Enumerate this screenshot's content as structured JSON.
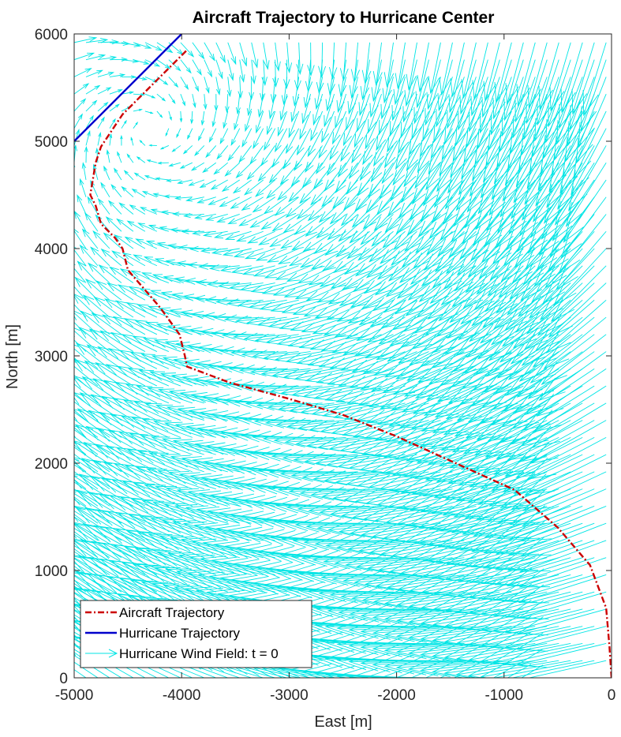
{
  "chart_data": {
    "type": "line",
    "title": "Aircraft Trajectory to Hurricane Center",
    "xlabel": "East [m]",
    "ylabel": "North [m]",
    "xlim": [
      -5000,
      0
    ],
    "ylim": [
      0,
      6000
    ],
    "x_ticks": [
      "-5000",
      "-4000",
      "-3000",
      "-2000",
      "-1000",
      "0"
    ],
    "y_ticks": [
      "0",
      "1000",
      "2000",
      "3000",
      "4000",
      "5000",
      "6000"
    ],
    "grid": false,
    "legend_position": "bottom-left",
    "series": [
      {
        "name": "Aircraft Trajectory",
        "color": "#cc0000",
        "style": "dash-dot",
        "points": [
          [
            0,
            0
          ],
          [
            -20,
            300
          ],
          [
            -50,
            650
          ],
          [
            -200,
            1050
          ],
          [
            -500,
            1400
          ],
          [
            -900,
            1750
          ],
          [
            -1450,
            2000
          ],
          [
            -2000,
            2250
          ],
          [
            -2500,
            2450
          ],
          [
            -3000,
            2600
          ],
          [
            -3550,
            2750
          ],
          [
            -3950,
            2900
          ],
          [
            -3970,
            3000
          ],
          [
            -4020,
            3200
          ],
          [
            -4200,
            3450
          ],
          [
            -4500,
            3800
          ],
          [
            -4550,
            4000
          ],
          [
            -4620,
            4100
          ],
          [
            -4750,
            4230
          ],
          [
            -4800,
            4400
          ],
          [
            -4850,
            4500
          ],
          [
            -4800,
            4800
          ],
          [
            -4750,
            4950
          ],
          [
            -4650,
            5100
          ],
          [
            -4550,
            5250
          ],
          [
            -4300,
            5500
          ],
          [
            -3950,
            5850
          ]
        ]
      },
      {
        "name": "Hurricane Trajectory",
        "color": "#0000cc",
        "style": "solid",
        "points": [
          [
            -5000,
            5000
          ],
          [
            -4000,
            6000
          ]
        ]
      },
      {
        "name": "Hurricane Wind Field: t = 0",
        "color": "#00e5e5",
        "style": "quiver",
        "vortex_center": [
          -4300,
          5100
        ]
      }
    ]
  }
}
